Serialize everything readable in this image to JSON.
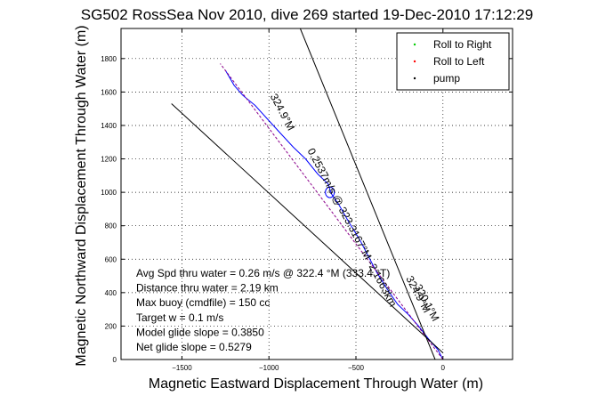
{
  "chart_data": {
    "type": "line",
    "title": "SG502 RossSea Nov 2010, dive 269 started 19-Dec-2010 17:12:29",
    "xlabel": "Magnetic Eastward Displacement Through Water (m)",
    "ylabel": "Magnetic Northward Displacement Through Water (m)",
    "xlim": [
      -1850,
      400
    ],
    "ylim": [
      0,
      1980
    ],
    "xticks": [
      -1500,
      -1000,
      -500,
      0
    ],
    "xtick_labels": [
      "−1500",
      "−1000",
      "−500",
      "0"
    ],
    "yticks": [
      0,
      200,
      400,
      600,
      800,
      1000,
      1200,
      1400,
      1600,
      1800
    ],
    "ytick_labels": [
      "0",
      "200",
      "400",
      "600",
      "800",
      "1000",
      "1200",
      "1400",
      "1600",
      "1800"
    ],
    "grid": true,
    "legend_position": "top-right",
    "legend": [
      {
        "label": "Roll to Right",
        "color": "#00cc00",
        "marker": "."
      },
      {
        "label": "Roll to Left",
        "color": "#ff0000",
        "marker": "."
      },
      {
        "label": "pump",
        "color": "#000000",
        "marker": "."
      }
    ],
    "series": [
      {
        "color": "#0000ff",
        "points": [
          [
            0,
            0
          ],
          [
            -30,
            60
          ],
          [
            -80,
            120
          ],
          [
            -140,
            200
          ],
          [
            -200,
            270
          ],
          [
            -260,
            330
          ],
          [
            -320,
            420
          ],
          [
            -380,
            520
          ],
          [
            -430,
            620
          ],
          [
            -480,
            720
          ],
          [
            -540,
            820
          ],
          [
            -600,
            930
          ],
          [
            -640,
            990
          ],
          [
            -660,
            1050
          ],
          [
            -720,
            1110
          ],
          [
            -790,
            1200
          ],
          [
            -860,
            1270
          ],
          [
            -940,
            1360
          ],
          [
            -1010,
            1440
          ],
          [
            -1080,
            1520
          ],
          [
            -1150,
            1580
          ],
          [
            -1200,
            1640
          ],
          [
            -1250,
            1730
          ]
        ]
      },
      {
        "color": "#8b008b",
        "dashed": true,
        "points": [
          [
            0,
            0
          ],
          [
            -1280,
            1770
          ]
        ]
      },
      {
        "color": "#000000",
        "points": [
          [
            -45,
            0
          ],
          [
            -820,
            1980
          ]
        ]
      },
      {
        "color": "#000000",
        "points": [
          [
            0,
            40
          ],
          [
            -1560,
            1530
          ]
        ]
      }
    ],
    "annotations": [
      {
        "text": "324.9°M",
        "x": -940,
        "y": 1470,
        "rotation": 62
      },
      {
        "text": "0.2537m/s @ 323.3167°M -2.1663km",
        "x": -540,
        "y": 780,
        "rotation": 62
      },
      {
        "text": "324.9°M",
        "x": -160,
        "y": 380,
        "rotation": 62
      },
      {
        "text": "320.1°M",
        "x": -110,
        "y": 330,
        "rotation": 62
      }
    ],
    "info_lines": [
      "Avg Spd thru water =  0.26 m/s @ 322.4 °M (333.4 °T)",
      "Distance thru water =  2.19 km",
      "Max buoy (cmdfile) = 150 cc",
      "Target w = 0.1 m/s",
      "Model glide slope = 0.3850",
      "Net glide slope = 0.5279"
    ]
  }
}
